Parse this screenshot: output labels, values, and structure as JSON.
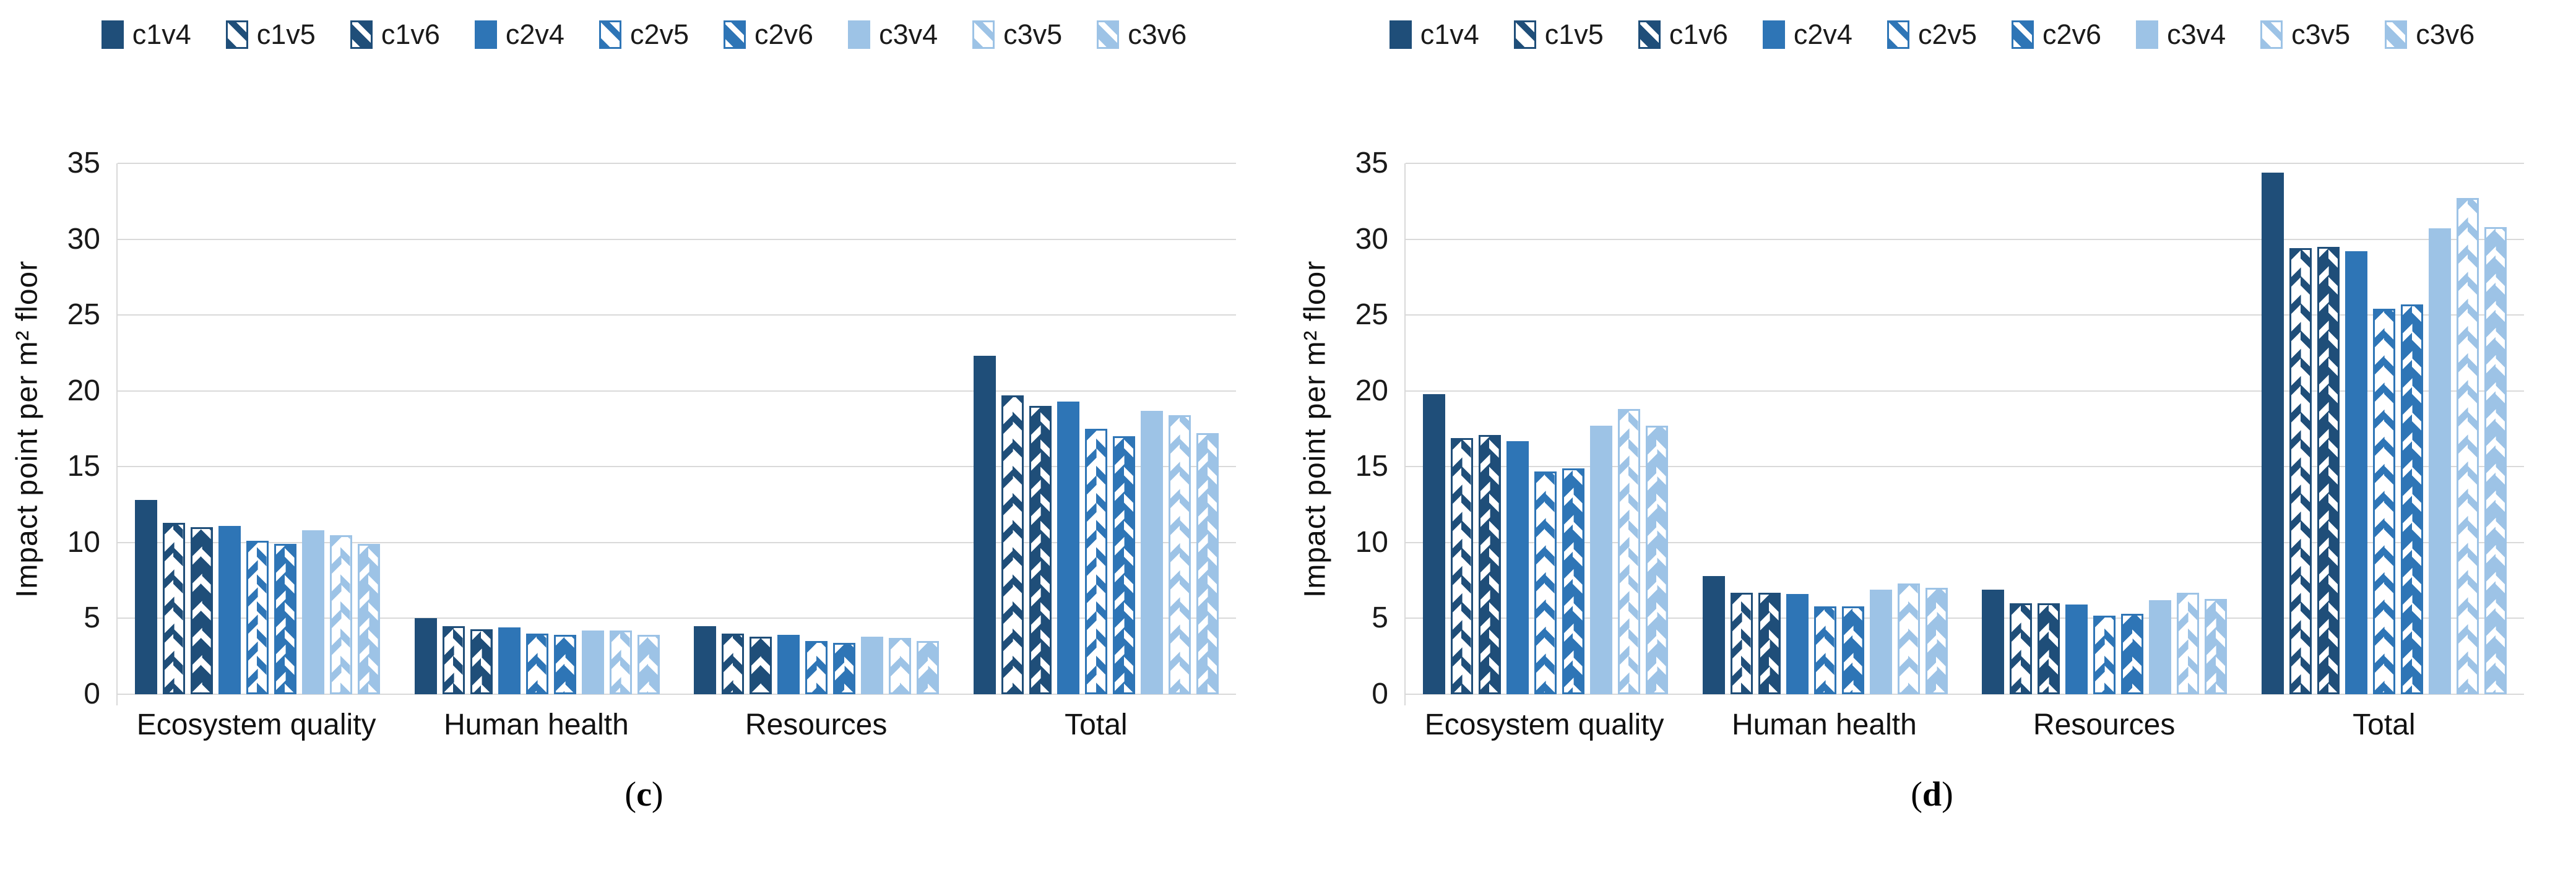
{
  "figure": {
    "background": "#FFFFFF",
    "gridline_color": "#D9D9D9",
    "palette": {
      "c1": "#1F4E79",
      "c2": "#2E75B6",
      "c3": "#9DC3E6"
    }
  },
  "chart_data": [
    {
      "type": "bar",
      "caption_open": "(",
      "caption_letter": "c",
      "caption_close": ")",
      "ylabel": "Impact point per m² floor",
      "ylim": [
        0,
        35
      ],
      "y_ticks": [
        0,
        5,
        10,
        15,
        20,
        25,
        30,
        35
      ],
      "grid": true,
      "legend_position": "top",
      "categories": [
        "Ecosystem quality",
        "Human health",
        "Resources",
        "Total"
      ],
      "series": [
        {
          "name": "c1v4",
          "color": "#1F4E79",
          "variant": "v4",
          "values": [
            12.8,
            5.0,
            4.5,
            22.3
          ]
        },
        {
          "name": "c1v5",
          "color": "#1F4E79",
          "variant": "v5",
          "values": [
            11.3,
            4.5,
            4.0,
            19.7
          ]
        },
        {
          "name": "c1v6",
          "color": "#1F4E79",
          "variant": "v6",
          "values": [
            11.0,
            4.3,
            3.8,
            19.0
          ]
        },
        {
          "name": "c2v4",
          "color": "#2E75B6",
          "variant": "v4",
          "values": [
            11.1,
            4.4,
            3.9,
            19.3
          ]
        },
        {
          "name": "c2v5",
          "color": "#2E75B6",
          "variant": "v5",
          "values": [
            10.1,
            4.0,
            3.5,
            17.5
          ]
        },
        {
          "name": "c2v6",
          "color": "#2E75B6",
          "variant": "v6",
          "values": [
            9.9,
            3.9,
            3.4,
            17.0
          ]
        },
        {
          "name": "c3v4",
          "color": "#9DC3E6",
          "variant": "v4",
          "values": [
            10.8,
            4.2,
            3.8,
            18.7
          ]
        },
        {
          "name": "c3v5",
          "color": "#9DC3E6",
          "variant": "v5",
          "values": [
            10.5,
            4.2,
            3.7,
            18.4
          ]
        },
        {
          "name": "c3v6",
          "color": "#9DC3E6",
          "variant": "v6",
          "values": [
            9.9,
            3.9,
            3.5,
            17.2
          ]
        }
      ]
    },
    {
      "type": "bar",
      "caption_open": "(",
      "caption_letter": "d",
      "caption_close": ")",
      "ylabel": "Impact point per m² floor",
      "ylim": [
        0,
        35
      ],
      "y_ticks": [
        0,
        5,
        10,
        15,
        20,
        25,
        30,
        35
      ],
      "grid": true,
      "legend_position": "top",
      "categories": [
        "Ecosystem quality",
        "Human health",
        "Resources",
        "Total"
      ],
      "series": [
        {
          "name": "c1v4",
          "color": "#1F4E79",
          "variant": "v4",
          "values": [
            19.8,
            7.8,
            6.9,
            34.4
          ]
        },
        {
          "name": "c1v5",
          "color": "#1F4E79",
          "variant": "v5",
          "values": [
            16.9,
            6.7,
            6.0,
            29.4
          ]
        },
        {
          "name": "c1v6",
          "color": "#1F4E79",
          "variant": "v6",
          "values": [
            17.1,
            6.7,
            6.0,
            29.5
          ]
        },
        {
          "name": "c2v4",
          "color": "#2E75B6",
          "variant": "v4",
          "values": [
            16.7,
            6.6,
            5.9,
            29.2
          ]
        },
        {
          "name": "c2v5",
          "color": "#2E75B6",
          "variant": "v5",
          "values": [
            14.7,
            5.8,
            5.2,
            25.4
          ]
        },
        {
          "name": "c2v6",
          "color": "#2E75B6",
          "variant": "v6",
          "values": [
            14.9,
            5.8,
            5.3,
            25.7
          ]
        },
        {
          "name": "c3v4",
          "color": "#9DC3E6",
          "variant": "v4",
          "values": [
            17.7,
            6.9,
            6.2,
            30.7
          ]
        },
        {
          "name": "c3v5",
          "color": "#9DC3E6",
          "variant": "v5",
          "values": [
            18.8,
            7.3,
            6.7,
            32.7
          ]
        },
        {
          "name": "c3v6",
          "color": "#9DC3E6",
          "variant": "v6",
          "values": [
            17.7,
            7.0,
            6.3,
            30.8
          ]
        }
      ]
    }
  ]
}
